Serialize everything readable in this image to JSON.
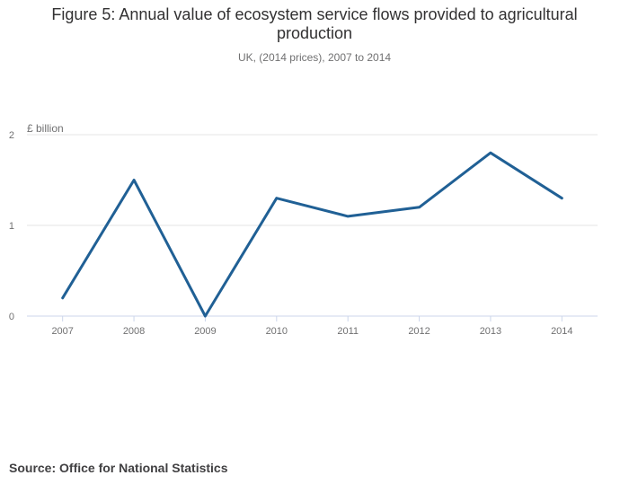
{
  "chart_data": {
    "type": "line",
    "title": "Figure 5: Annual value of ecosystem service flows provided to agricultural production",
    "subtitle": "UK, (2014 prices), 2007 to 2014",
    "ylabel": "£ billion",
    "xlabel": "",
    "categories": [
      "2007",
      "2008",
      "2009",
      "2010",
      "2011",
      "2012",
      "2013",
      "2014"
    ],
    "series": [
      {
        "values": [
          0.2,
          1.5,
          0.0,
          1.3,
          1.1,
          1.2,
          1.8,
          1.3
        ],
        "color": "#206095"
      }
    ],
    "ylim": [
      0,
      2
    ],
    "yticks": [
      0,
      1,
      2
    ],
    "grid": true,
    "legend": "none",
    "source": "Source: Office for National Statistics"
  }
}
